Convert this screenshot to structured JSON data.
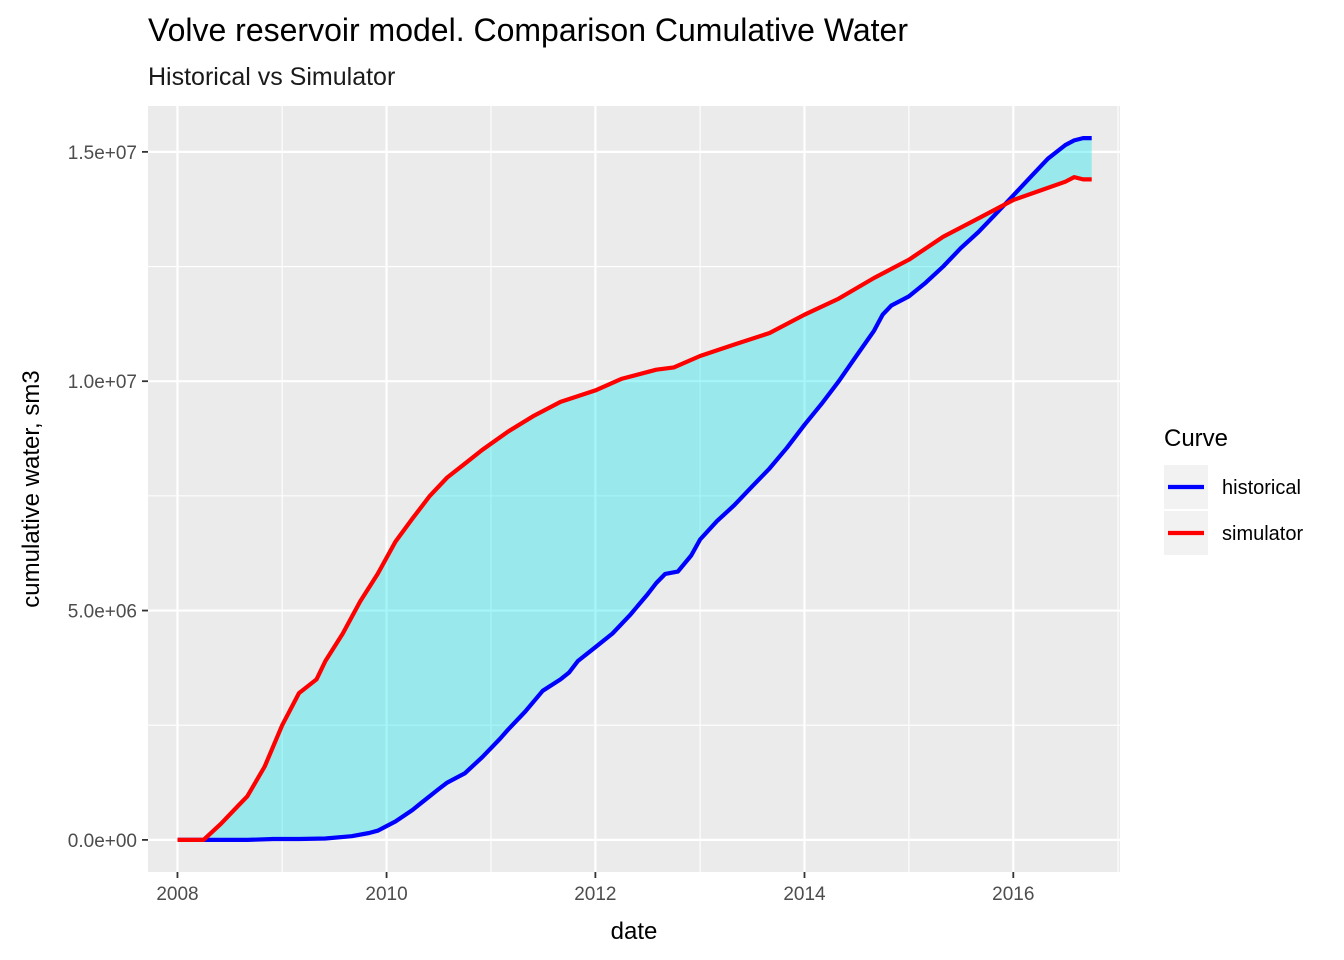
{
  "chart_data": {
    "type": "line",
    "title": "Volve reservoir model. Comparison Cumulative Water",
    "subtitle": "Historical vs Simulator",
    "xlabel": "date",
    "ylabel": "cumulative water, sm3",
    "xlim": [
      "2007-09-20",
      "2017-01-08"
    ],
    "ylim": [
      -700000,
      16000000
    ],
    "x_ticks": [
      {
        "date": "2008-01-01",
        "label": "2008"
      },
      {
        "date": "2010-01-01",
        "label": "2010"
      },
      {
        "date": "2012-01-01",
        "label": "2012"
      },
      {
        "date": "2014-01-01",
        "label": "2014"
      },
      {
        "date": "2016-01-01",
        "label": "2016"
      }
    ],
    "x_minor_ticks": [
      "2007-01-01",
      "2009-01-01",
      "2011-01-01",
      "2013-01-01",
      "2015-01-01",
      "2017-01-01"
    ],
    "y_ticks": [
      {
        "value": 0,
        "label": "0.0e+00"
      },
      {
        "value": 5000000,
        "label": "5.0e+06"
      },
      {
        "value": 10000000,
        "label": "1.0e+07"
      },
      {
        "value": 15000000,
        "label": "1.5e+07"
      }
    ],
    "y_minor_ticks": [
      2500000,
      7500000,
      12500000
    ],
    "grid": true,
    "legend": {
      "title": "Curve",
      "position": "right"
    },
    "ribbon_color": "#00E5EE",
    "ribbon_opacity": 0.35,
    "series": [
      {
        "name": "historical",
        "color": "#0000FF",
        "points": [
          [
            "2008-01-01",
            0
          ],
          [
            "2008-06-01",
            0
          ],
          [
            "2008-09-01",
            0
          ],
          [
            "2008-12-01",
            20000
          ],
          [
            "2009-03-01",
            20000
          ],
          [
            "2009-06-01",
            30000
          ],
          [
            "2009-09-01",
            80000
          ],
          [
            "2009-11-01",
            150000
          ],
          [
            "2009-12-01",
            200000
          ],
          [
            "2010-02-01",
            400000
          ],
          [
            "2010-04-01",
            650000
          ],
          [
            "2010-05-01",
            800000
          ],
          [
            "2010-07-01",
            1100000
          ],
          [
            "2010-08-01",
            1250000
          ],
          [
            "2010-10-01",
            1450000
          ],
          [
            "2010-12-01",
            1800000
          ],
          [
            "2011-02-01",
            2200000
          ],
          [
            "2011-03-01",
            2400000
          ],
          [
            "2011-05-01",
            2800000
          ],
          [
            "2011-07-01",
            3250000
          ],
          [
            "2011-09-01",
            3500000
          ],
          [
            "2011-10-01",
            3650000
          ],
          [
            "2011-11-01",
            3900000
          ],
          [
            "2012-01-01",
            4200000
          ],
          [
            "2012-03-01",
            4500000
          ],
          [
            "2012-05-01",
            4900000
          ],
          [
            "2012-07-01",
            5350000
          ],
          [
            "2012-08-01",
            5600000
          ],
          [
            "2012-09-01",
            5800000
          ],
          [
            "2012-10-15",
            5850000
          ],
          [
            "2012-12-01",
            6200000
          ],
          [
            "2013-01-01",
            6550000
          ],
          [
            "2013-03-01",
            6950000
          ],
          [
            "2013-05-01",
            7300000
          ],
          [
            "2013-07-01",
            7700000
          ],
          [
            "2013-09-01",
            8100000
          ],
          [
            "2013-11-01",
            8550000
          ],
          [
            "2014-01-01",
            9050000
          ],
          [
            "2014-03-01",
            9500000
          ],
          [
            "2014-05-01",
            10000000
          ],
          [
            "2014-07-01",
            10550000
          ],
          [
            "2014-09-01",
            11100000
          ],
          [
            "2014-10-01",
            11450000
          ],
          [
            "2014-11-01",
            11650000
          ],
          [
            "2015-01-01",
            11850000
          ],
          [
            "2015-03-01",
            12150000
          ],
          [
            "2015-05-01",
            12500000
          ],
          [
            "2015-07-01",
            12900000
          ],
          [
            "2015-09-01",
            13250000
          ],
          [
            "2015-11-01",
            13650000
          ],
          [
            "2016-01-01",
            14050000
          ],
          [
            "2016-03-01",
            14450000
          ],
          [
            "2016-05-01",
            14850000
          ],
          [
            "2016-07-01",
            15150000
          ],
          [
            "2016-08-01",
            15250000
          ],
          [
            "2016-09-01",
            15300000
          ],
          [
            "2016-10-01",
            15300000
          ]
        ]
      },
      {
        "name": "simulator",
        "color": "#FF0000",
        "points": [
          [
            "2008-01-01",
            0
          ],
          [
            "2008-03-01",
            0
          ],
          [
            "2008-04-01",
            0
          ],
          [
            "2008-06-01",
            350000
          ],
          [
            "2008-08-01",
            750000
          ],
          [
            "2008-09-01",
            950000
          ],
          [
            "2008-11-01",
            1600000
          ],
          [
            "2009-01-01",
            2500000
          ],
          [
            "2009-03-01",
            3200000
          ],
          [
            "2009-05-01",
            3500000
          ],
          [
            "2009-06-01",
            3900000
          ],
          [
            "2009-08-01",
            4500000
          ],
          [
            "2009-10-01",
            5200000
          ],
          [
            "2009-12-01",
            5800000
          ],
          [
            "2010-02-01",
            6500000
          ],
          [
            "2010-04-01",
            7000000
          ],
          [
            "2010-06-01",
            7500000
          ],
          [
            "2010-08-01",
            7900000
          ],
          [
            "2010-10-01",
            8200000
          ],
          [
            "2010-12-01",
            8500000
          ],
          [
            "2011-03-01",
            8900000
          ],
          [
            "2011-06-01",
            9250000
          ],
          [
            "2011-09-01",
            9550000
          ],
          [
            "2012-01-01",
            9800000
          ],
          [
            "2012-04-01",
            10050000
          ],
          [
            "2012-08-01",
            10250000
          ],
          [
            "2012-10-01",
            10300000
          ],
          [
            "2013-01-01",
            10550000
          ],
          [
            "2013-05-01",
            10800000
          ],
          [
            "2013-09-01",
            11050000
          ],
          [
            "2014-01-01",
            11450000
          ],
          [
            "2014-05-01",
            11800000
          ],
          [
            "2014-09-01",
            12250000
          ],
          [
            "2015-01-01",
            12650000
          ],
          [
            "2015-05-01",
            13150000
          ],
          [
            "2015-09-01",
            13550000
          ],
          [
            "2016-01-01",
            13950000
          ],
          [
            "2016-04-01",
            14150000
          ],
          [
            "2016-07-01",
            14350000
          ],
          [
            "2016-08-01",
            14450000
          ],
          [
            "2016-09-01",
            14400000
          ],
          [
            "2016-10-01",
            14400000
          ]
        ]
      }
    ]
  }
}
